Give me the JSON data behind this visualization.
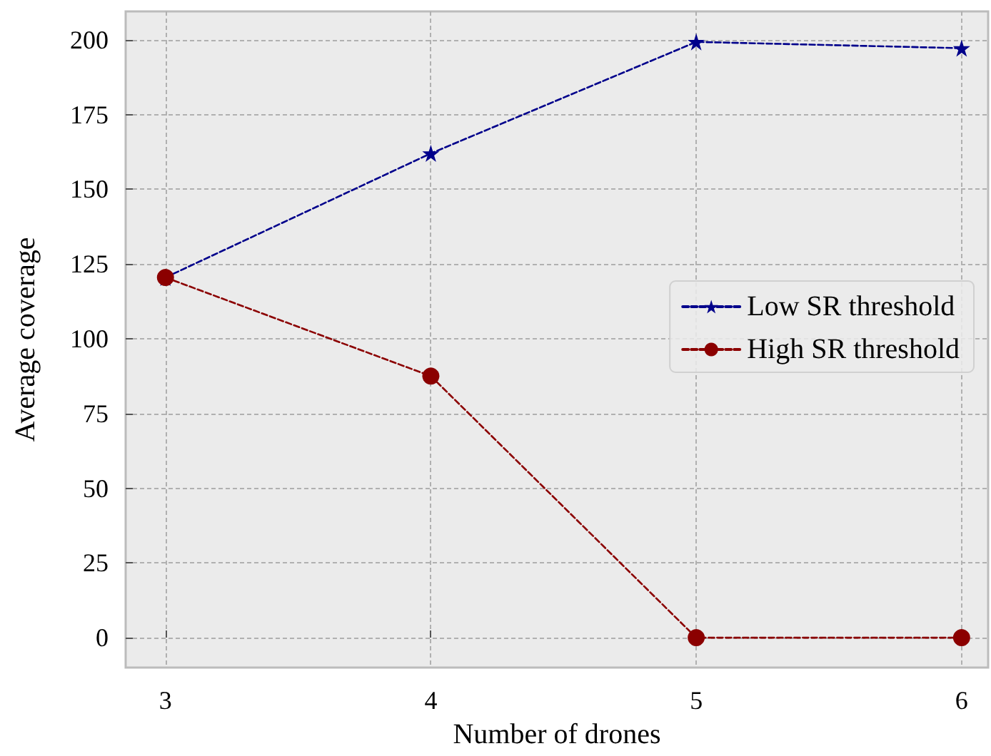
{
  "chart_data": {
    "type": "line",
    "xlabel": "Number of drones",
    "ylabel": "Average coverage",
    "x": [
      3,
      4,
      5,
      6
    ],
    "series": [
      {
        "name": "Low SR threshold",
        "color": "#00008b",
        "values": [
          120.5,
          162,
          199.3,
          197.2
        ],
        "marker": "star"
      },
      {
        "name": "High SR threshold",
        "color": "#8b0000",
        "values": [
          120.5,
          87.5,
          0,
          0
        ],
        "marker": "circle"
      }
    ],
    "xlim": [
      2.85,
      6.1
    ],
    "xticks": [
      3,
      4,
      5,
      6
    ],
    "ylim": [
      -10,
      209.5
    ],
    "yticks": [
      0,
      25,
      50,
      75,
      100,
      125,
      150,
      175,
      200
    ],
    "grid": true,
    "legend": "right",
    "line_style": "dashed"
  }
}
